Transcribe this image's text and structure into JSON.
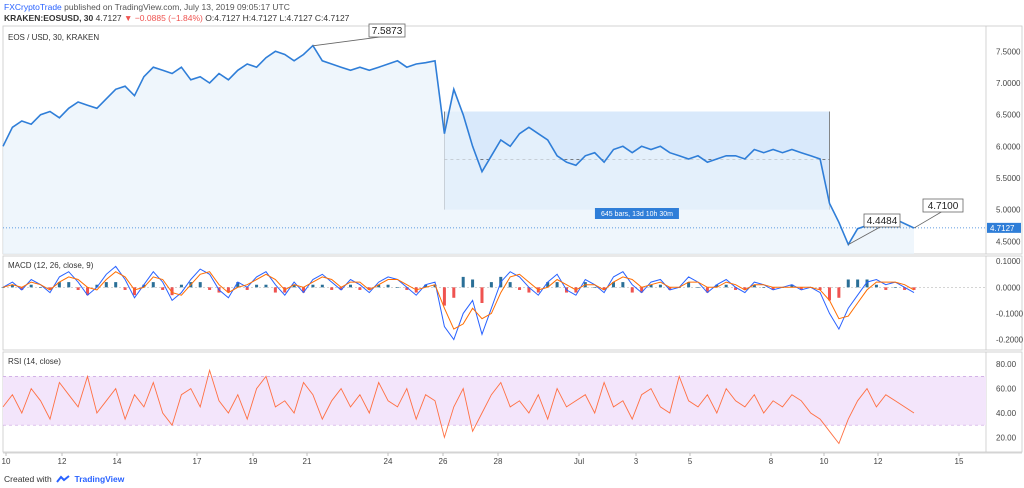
{
  "header": {
    "author": "FXCryptoTrade",
    "published_text": "published on TradingView.com, July 13, 2019 09:05:17 UTC",
    "symbol_line": "KRAKEN:EOSUSD, 30",
    "last": "4.7127",
    "change_arrow": "▼",
    "change": "−0.0885 (−1.84%)",
    "ohlc": "O:4.7127 H:4.7127 L:4.7127 C:4.7127"
  },
  "footer": {
    "created_with": "Created with",
    "brand": "TradingView"
  },
  "colors": {
    "price_line": "#2f7ed8",
    "price_fill": "#e8f2fb",
    "range_box": "#cfe4fa",
    "macd_line": "#2962ff",
    "signal_line": "#ff6d00",
    "hist_pos": "#2a6f97",
    "hist_neg": "#ef5350",
    "rsi_line": "#ff7043",
    "rsi_band": "#f3e5fb",
    "last_price_bg": "#2f7ed8"
  },
  "chart_data": [
    {
      "type": "line",
      "title": "EOS / USD, 30, KRAKEN",
      "x_ticks": [
        "10",
        "12",
        "14",
        "17",
        "19",
        "21",
        "24",
        "26",
        "28",
        "Jul",
        "3",
        "5",
        "8",
        "10",
        "12",
        "15"
      ],
      "ylim": [
        4.3,
        7.9
      ],
      "y_ticks": [
        "4.5000",
        "5.0000",
        "5.5000",
        "6.0000",
        "6.5000",
        "7.0000",
        "7.5000"
      ],
      "series": [
        {
          "values": [
            6.0,
            6.3,
            6.4,
            6.35,
            6.5,
            6.55,
            6.45,
            6.6,
            6.7,
            6.65,
            6.6,
            6.75,
            6.9,
            6.95,
            6.8,
            7.1,
            7.25,
            7.2,
            7.15,
            7.25,
            7.05,
            7.1,
            7.0,
            7.15,
            7.05,
            7.2,
            7.3,
            7.25,
            7.4,
            7.5,
            7.45,
            7.35,
            7.45,
            7.59,
            7.35,
            7.3,
            7.25,
            7.2,
            7.25,
            7.2,
            7.25,
            7.3,
            7.35,
            7.25,
            7.3,
            7.32,
            7.35,
            6.2,
            6.9,
            6.5,
            6.0,
            5.6,
            5.85,
            6.1,
            6.0,
            6.2,
            6.3,
            6.2,
            6.1,
            5.85,
            5.75,
            5.7,
            5.85,
            5.9,
            5.75,
            5.95,
            6.0,
            5.9,
            6.0,
            5.95,
            6.0,
            5.9,
            5.85,
            5.8,
            5.85,
            5.75,
            5.8,
            5.85,
            5.85,
            5.8,
            5.95,
            5.9,
            5.95,
            5.9,
            5.95,
            5.9,
            5.85,
            5.8,
            5.1,
            4.8,
            4.45,
            4.7,
            4.75,
            4.85,
            4.8,
            4.85,
            4.78,
            4.71
          ]
        }
      ],
      "annotations": [
        {
          "label": "7.5873",
          "value": 7.5873
        },
        {
          "label": "4.4484",
          "value": 4.4484
        },
        {
          "label": "4.7100",
          "value": 4.71
        },
        {
          "label": "645 bars, 13d 10h 30m"
        }
      ],
      "range_box": {
        "value_low": 5.0,
        "value_high": 6.55,
        "mid_value": 5.79
      },
      "last_price": {
        "label": "4.7127",
        "value": 4.7127
      }
    },
    {
      "type": "line",
      "title": "MACD (12, 26, close, 9)",
      "ylim": [
        -0.24,
        0.12
      ],
      "y_ticks": [
        "0.1000",
        "0.0000",
        "-0.1000",
        "-0.2000"
      ],
      "series": [
        {
          "name": "macd",
          "values": [
            0.0,
            0.02,
            -0.01,
            0.03,
            0.01,
            -0.02,
            0.04,
            0.06,
            0.02,
            -0.03,
            0.0,
            0.05,
            0.08,
            0.03,
            -0.04,
            0.01,
            0.06,
            0.02,
            -0.05,
            -0.02,
            0.03,
            0.07,
            0.05,
            -0.01,
            -0.04,
            0.02,
            0.0,
            0.04,
            0.06,
            0.01,
            -0.03,
            0.02,
            -0.02,
            0.03,
            0.05,
            0.02,
            -0.01,
            0.03,
            0.01,
            -0.02,
            0.02,
            0.04,
            0.03,
            0.0,
            -0.03,
            0.01,
            0.02,
            -0.15,
            -0.2,
            -0.1,
            -0.05,
            -0.18,
            -0.08,
            0.02,
            0.06,
            0.04,
            0.0,
            -0.03,
            0.02,
            0.05,
            -0.01,
            -0.03,
            0.03,
            0.01,
            -0.02,
            0.04,
            0.06,
            0.01,
            -0.02,
            0.02,
            0.03,
            -0.01,
            0.0,
            0.04,
            0.02,
            -0.02,
            0.01,
            0.03,
            0.0,
            -0.02,
            0.02,
            0.01,
            -0.01,
            0.0,
            0.01,
            -0.01,
            0.0,
            -0.02,
            -0.1,
            -0.16,
            -0.08,
            -0.03,
            0.02,
            0.03,
            0.01,
            0.02,
            0.0,
            -0.02
          ]
        },
        {
          "name": "signal",
          "values": [
            0.0,
            0.01,
            0.0,
            0.02,
            0.01,
            -0.01,
            0.02,
            0.04,
            0.03,
            0.0,
            -0.01,
            0.03,
            0.06,
            0.04,
            -0.01,
            0.0,
            0.04,
            0.03,
            -0.02,
            -0.03,
            0.01,
            0.05,
            0.06,
            0.01,
            -0.02,
            0.0,
            0.01,
            0.03,
            0.05,
            0.03,
            -0.01,
            0.01,
            0.0,
            0.02,
            0.04,
            0.03,
            0.0,
            0.02,
            0.02,
            -0.01,
            0.01,
            0.03,
            0.03,
            0.01,
            -0.01,
            0.0,
            0.01,
            -0.08,
            -0.16,
            -0.14,
            -0.08,
            -0.12,
            -0.1,
            -0.02,
            0.04,
            0.05,
            0.02,
            -0.01,
            0.0,
            0.03,
            0.01,
            -0.01,
            0.01,
            0.01,
            -0.01,
            0.02,
            0.04,
            0.03,
            0.0,
            0.01,
            0.02,
            0.0,
            0.0,
            0.02,
            0.02,
            0.0,
            0.0,
            0.02,
            0.01,
            -0.01,
            0.01,
            0.01,
            0.0,
            0.0,
            0.0,
            0.0,
            0.0,
            -0.01,
            -0.05,
            -0.12,
            -0.11,
            -0.06,
            -0.01,
            0.02,
            0.02,
            0.02,
            0.01,
            -0.01
          ]
        }
      ]
    },
    {
      "type": "line",
      "title": "RSI (14, close)",
      "ylim": [
        8,
        90
      ],
      "y_ticks": [
        "80.00",
        "60.00",
        "40.00",
        "20.00"
      ],
      "band": [
        30,
        70
      ],
      "series": [
        {
          "values": [
            45,
            55,
            40,
            60,
            50,
            35,
            65,
            55,
            45,
            70,
            40,
            50,
            60,
            35,
            55,
            45,
            65,
            40,
            30,
            55,
            60,
            45,
            75,
            50,
            40,
            55,
            35,
            60,
            70,
            45,
            50,
            40,
            65,
            55,
            35,
            50,
            60,
            45,
            55,
            40,
            65,
            50,
            45,
            60,
            35,
            55,
            50,
            20,
            45,
            60,
            25,
            40,
            55,
            65,
            45,
            50,
            40,
            55,
            35,
            60,
            45,
            50,
            55,
            40,
            65,
            45,
            50,
            35,
            55,
            60,
            45,
            40,
            70,
            50,
            45,
            55,
            40,
            60,
            50,
            45,
            55,
            40,
            50,
            45,
            55,
            50,
            40,
            35,
            25,
            15,
            35,
            50,
            60,
            45,
            55,
            50,
            45,
            40
          ]
        }
      ]
    }
  ]
}
